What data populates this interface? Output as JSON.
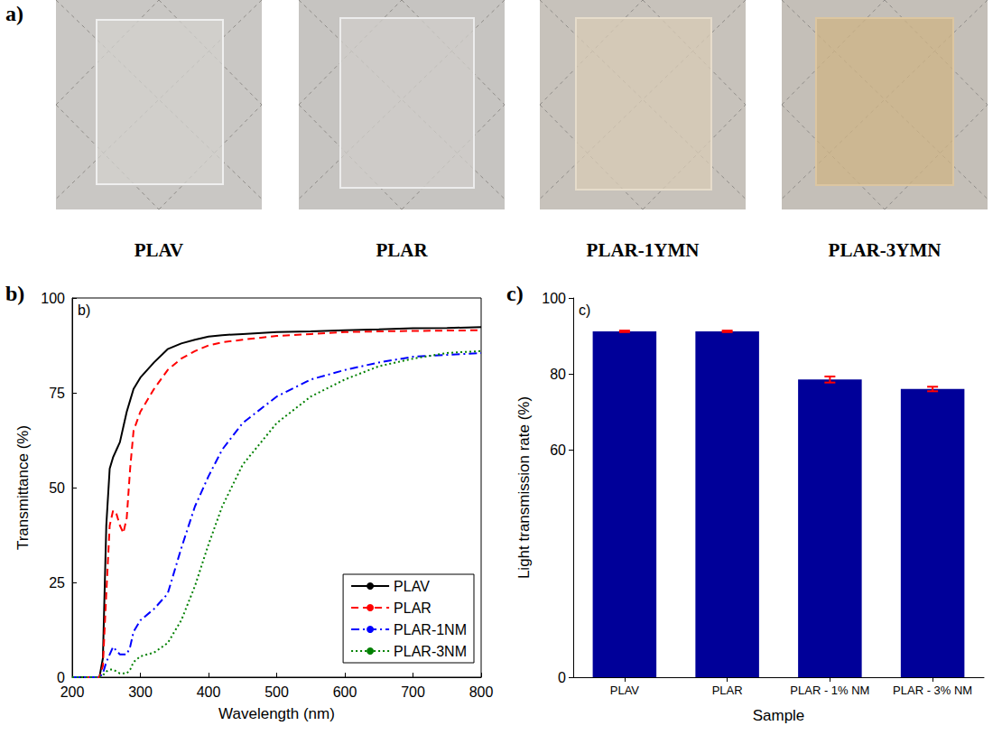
{
  "figure": {
    "panel_a": {
      "letter": "a)",
      "photos": [
        "PLAV",
        "PLAR",
        "PLAR-1YMN",
        "PLAR-3YMN"
      ]
    }
  },
  "chart_data": [
    {
      "type": "line",
      "panel_label": "b)",
      "inner_label": "b)",
      "x_label": "Wavelength (nm)",
      "y_label": "Transmittance (%)",
      "x": [
        200,
        220,
        240,
        245,
        250,
        255,
        260,
        265,
        270,
        275,
        280,
        285,
        290,
        300,
        320,
        340,
        360,
        380,
        400,
        420,
        450,
        500,
        550,
        600,
        650,
        700,
        750,
        800
      ],
      "series": [
        {
          "name": "PLAV",
          "color": "#000000",
          "line_style": "solid",
          "values": [
            0,
            0,
            0,
            5,
            40,
            55,
            58,
            60,
            62,
            66,
            70,
            73,
            76,
            79,
            83,
            86.5,
            88,
            89,
            89.8,
            90.2,
            90.5,
            91,
            91.2,
            91.5,
            91.7,
            92,
            92.1,
            92.3
          ]
        },
        {
          "name": "PLAR",
          "color": "#ff0000",
          "line_style": "dashed",
          "values": [
            0,
            0,
            0,
            3,
            22,
            40,
            44,
            43,
            40,
            38,
            42,
            55,
            65,
            70,
            76,
            81,
            84,
            86,
            87.5,
            88.3,
            89,
            90,
            90.5,
            91,
            91.2,
            91.3,
            91.4,
            91.5
          ]
        },
        {
          "name": "PLAR-1NM",
          "color": "#0000ff",
          "line_style": "dashdot",
          "values": [
            0,
            0,
            0,
            1,
            4,
            6,
            8,
            7,
            6,
            6,
            6,
            8,
            12,
            15,
            18,
            22,
            34,
            45,
            53,
            60,
            67,
            74,
            78.5,
            81,
            83,
            84.5,
            85,
            85.5
          ]
        },
        {
          "name": "PLAR-3NM",
          "color": "#008000",
          "line_style": "dotted",
          "values": [
            0,
            0,
            0,
            0.5,
            1.5,
            2,
            2,
            1.5,
            1,
            1,
            1,
            2,
            4,
            5.5,
            6.5,
            9,
            15,
            24,
            35,
            45,
            56,
            67,
            74,
            78.5,
            82,
            84,
            85.5,
            86
          ]
        }
      ],
      "xlim": [
        200,
        800
      ],
      "xticks": [
        200,
        300,
        400,
        500,
        600,
        700,
        800
      ],
      "ylim": [
        0,
        100
      ],
      "yticks": [
        0,
        25,
        50,
        75,
        100
      ],
      "grid": false,
      "legend": "lower right"
    },
    {
      "type": "bar",
      "panel_label": "c)",
      "inner_label": "c)",
      "x_label": "Sample",
      "y_label": "Light transmission rate (%)",
      "categories": [
        "PLAV",
        "PLAR",
        "PLAR - 1% NM",
        "PLAR - 3% NM"
      ],
      "values": [
        91.2,
        91.2,
        78.5,
        76.0
      ],
      "errors": [
        0.2,
        0.2,
        0.8,
        0.6
      ],
      "color": "#000099",
      "error_color": "#ff0000",
      "ylim": [
        0,
        100
      ],
      "yticks": [
        0,
        60,
        80,
        100
      ],
      "grid": false
    }
  ]
}
